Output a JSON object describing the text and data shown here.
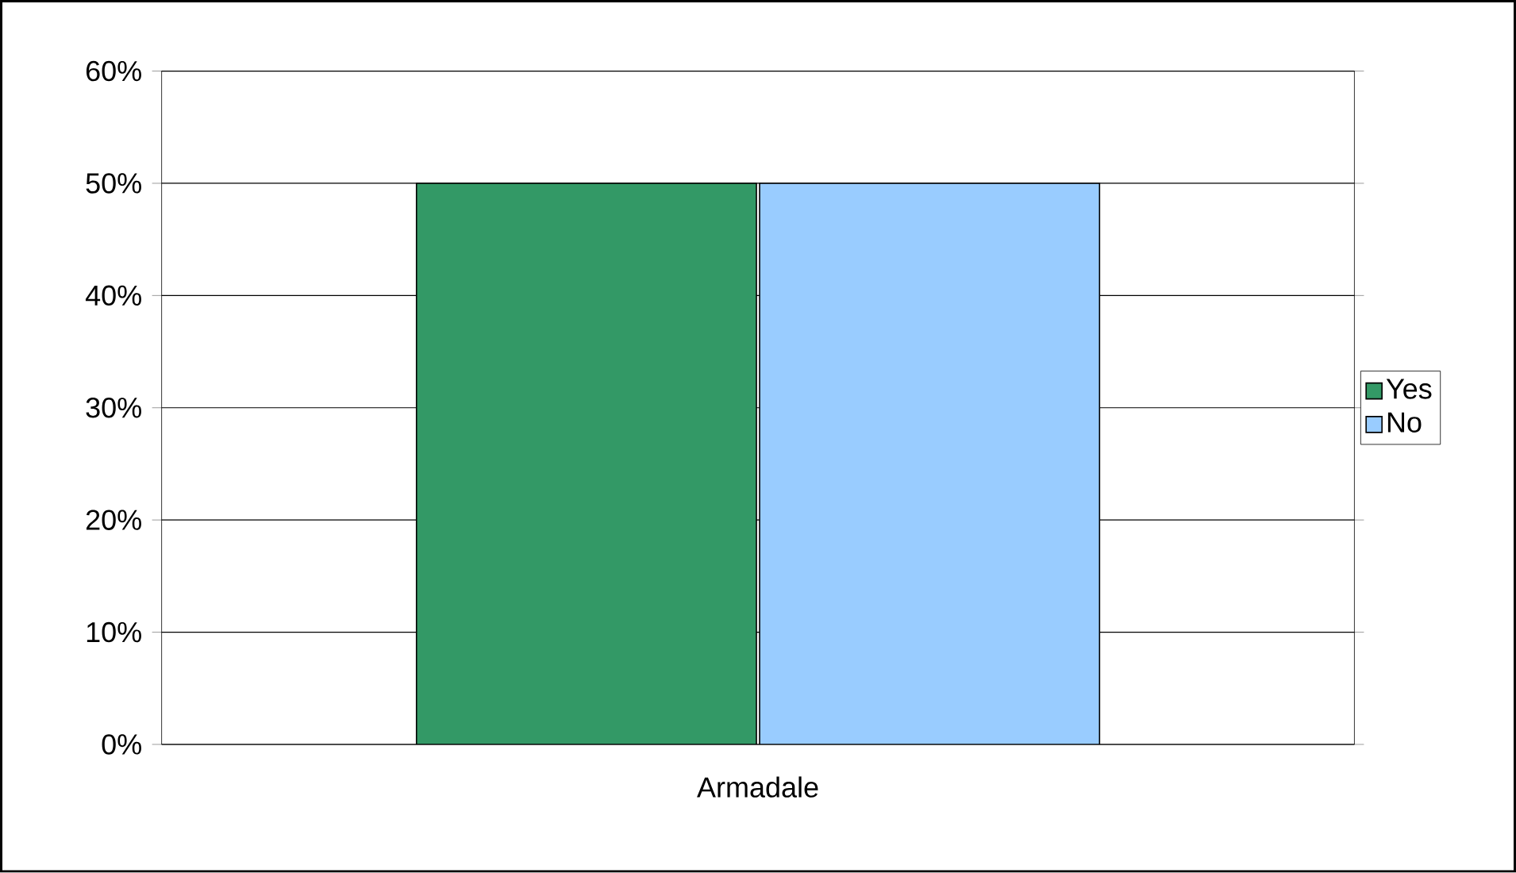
{
  "chart_data": {
    "type": "bar",
    "categories": [
      "Armadale"
    ],
    "series": [
      {
        "name": "Yes",
        "color": "#339966",
        "values": [
          50
        ]
      },
      {
        "name": "No",
        "color": "#99ccff",
        "values": [
          50
        ]
      }
    ],
    "ylim": [
      0,
      60
    ],
    "yticks": [
      {
        "value": 0,
        "label": "0%"
      },
      {
        "value": 10,
        "label": "10%"
      },
      {
        "value": 20,
        "label": "20%"
      },
      {
        "value": 30,
        "label": "30%"
      },
      {
        "value": 40,
        "label": "40%"
      },
      {
        "value": 50,
        "label": "50%"
      },
      {
        "value": 60,
        "label": "60%"
      }
    ],
    "grid": "y",
    "legend": "right"
  }
}
